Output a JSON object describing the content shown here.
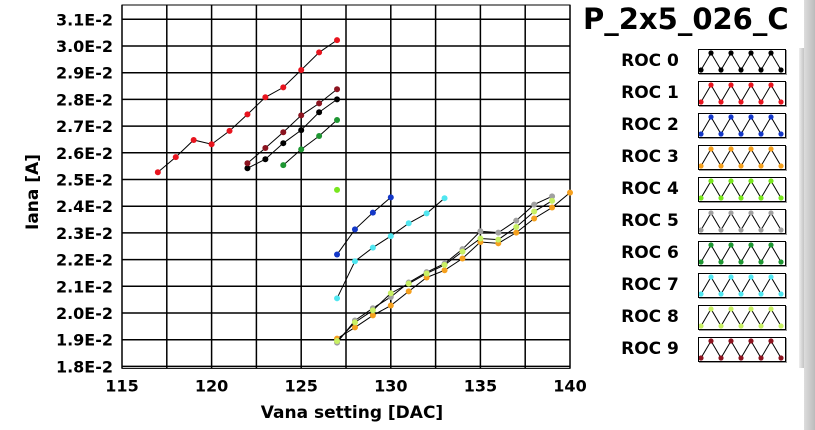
{
  "chart_data": {
    "type": "line",
    "title": "P_2x5_026_C",
    "xlabel": "Vana setting [DAC]",
    "ylabel": "Iana [A]",
    "xlim": [
      115,
      140
    ],
    "ylim": [
      0.018,
      0.031
    ],
    "grid": true,
    "legend_placement": "right",
    "x_ticks": [
      "115",
      "120",
      "125",
      "130",
      "135",
      "140"
    ],
    "x_tick_values": [
      115,
      120,
      125,
      130,
      135,
      140
    ],
    "y_ticks": [
      "1.8E-2",
      "1.9E-2",
      "2.0E-2",
      "2.1E-2",
      "2.2E-2",
      "2.3E-2",
      "2.4E-2",
      "2.5E-2",
      "2.6E-2",
      "2.7E-2",
      "2.8E-2",
      "2.9E-2",
      "3.0E-2",
      "3.1E-2"
    ],
    "y_tick_values": [
      0.018,
      0.019,
      0.02,
      0.021,
      0.022,
      0.023,
      0.024,
      0.025,
      0.026,
      0.027,
      0.028,
      0.029,
      0.03,
      0.031
    ],
    "series": [
      {
        "name": "ROC 0",
        "color": "#000000",
        "x": [
          122,
          123,
          124,
          125,
          126,
          127
        ],
        "y": [
          0.02542,
          0.02576,
          0.02636,
          0.02685,
          0.02752,
          0.028
        ]
      },
      {
        "name": "ROC 1",
        "color": "#e8141e",
        "x": [
          117,
          118,
          119,
          120,
          121,
          122,
          123,
          124,
          125,
          126,
          127
        ],
        "y": [
          0.02527,
          0.02584,
          0.02648,
          0.02632,
          0.02682,
          0.02744,
          0.02808,
          0.02845,
          0.0291,
          0.02976,
          0.03022
        ]
      },
      {
        "name": "ROC 2",
        "color": "#1438c8",
        "x": [
          127,
          128,
          129,
          130
        ],
        "y": [
          0.02219,
          0.02313,
          0.02376,
          0.02433
        ]
      },
      {
        "name": "ROC 3",
        "color": "#f5a01e",
        "x": [
          127,
          128,
          129,
          130,
          131,
          132,
          133,
          134,
          135,
          136,
          137,
          138,
          139,
          140
        ],
        "y": [
          0.01904,
          0.01946,
          0.01991,
          0.02028,
          0.02081,
          0.02133,
          0.0216,
          0.02204,
          0.02266,
          0.02261,
          0.02301,
          0.02354,
          0.02395,
          0.02451
        ]
      },
      {
        "name": "ROC 4",
        "color": "#78e61e",
        "x": [
          127
        ],
        "y": [
          0.02461
        ]
      },
      {
        "name": "ROC 5",
        "color": "#a0a0a0",
        "x": [
          127,
          128,
          129,
          130,
          131,
          132,
          133,
          134,
          135,
          136,
          137,
          138,
          139
        ],
        "y": [
          0.01889,
          0.01972,
          0.02018,
          0.0206,
          0.02114,
          0.02153,
          0.02185,
          0.02239,
          0.02306,
          0.02301,
          0.02346,
          0.02406,
          0.02437
        ]
      },
      {
        "name": "ROC 6",
        "color": "#1e9632",
        "x": [
          124,
          125,
          126,
          127
        ],
        "y": [
          0.02554,
          0.02613,
          0.02663,
          0.02723
        ]
      },
      {
        "name": "ROC 7",
        "color": "#50e6f0",
        "x": [
          127,
          128,
          129,
          130,
          131,
          132,
          133
        ],
        "y": [
          0.02055,
          0.02194,
          0.02245,
          0.02288,
          0.02336,
          0.02373,
          0.0243
        ]
      },
      {
        "name": "ROC 8",
        "color": "#c8f064",
        "x": [
          127,
          128,
          129,
          130,
          131,
          132,
          133,
          134,
          135,
          136,
          137,
          138,
          139
        ],
        "y": [
          0.01895,
          0.01965,
          0.0201,
          0.02074,
          0.0211,
          0.02148,
          0.0218,
          0.0223,
          0.02279,
          0.02275,
          0.02322,
          0.0238,
          0.0242
        ]
      },
      {
        "name": "ROC 9",
        "color": "#8c1420",
        "x": [
          122,
          123,
          124,
          125,
          126,
          127
        ],
        "y": [
          0.02561,
          0.02618,
          0.02677,
          0.0274,
          0.02785,
          0.02838
        ]
      }
    ]
  }
}
